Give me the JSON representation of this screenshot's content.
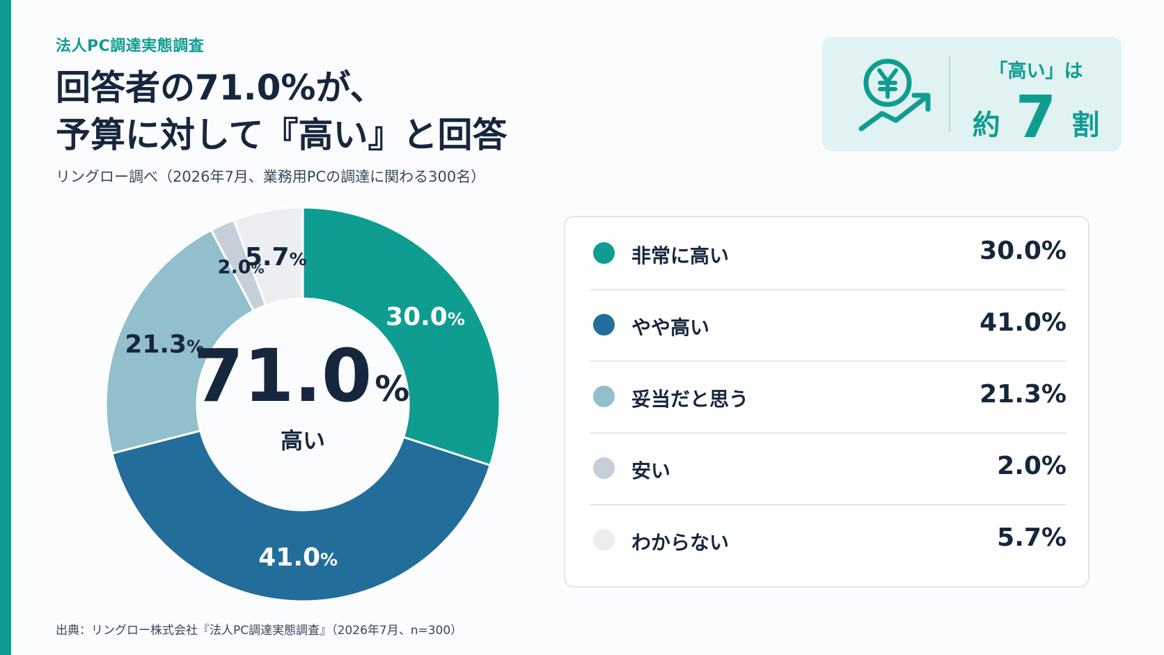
{
  "header": {
    "kicker": "法人PC調達実態調査",
    "headline_line1": "回答者の71.0%が、",
    "headline_line2": "予算に対して『高い』と回答",
    "subtitle": "リングロー調べ（2026年7月、業務用PCの調達に関わる300名）"
  },
  "callout": {
    "icon": "yen-coin-trend-up-icon",
    "line1": "「高い」は",
    "prefix": "約",
    "number": "7",
    "suffix": "割"
  },
  "chart_data": {
    "type": "pie",
    "donut": true,
    "unit": "%",
    "center_value": "71.0",
    "center_unit": "%",
    "center_label": "高い",
    "slices": [
      {
        "label": "非常に高い",
        "value": 30.0,
        "display": "30.0%",
        "value_text": "30.0",
        "color": "#0f9c91",
        "label_color": "#ffffff"
      },
      {
        "label": "やや高い",
        "value": 41.0,
        "display": "41.0%",
        "value_text": "41.0",
        "color": "#236d9b",
        "label_color": "#ffffff"
      },
      {
        "label": "妥当だと思う",
        "value": 21.3,
        "display": "21.3%",
        "value_text": "21.3",
        "color": "#92bfcc",
        "label_color": "#16263d"
      },
      {
        "label": "安い",
        "value": 2.0,
        "display": "2.0%",
        "value_text": "2.0",
        "color": "#c6cfd9",
        "label_color": "#16263d"
      },
      {
        "label": "わからない",
        "value": 5.7,
        "display": "5.7%",
        "value_text": "5.7",
        "color": "#eceef1",
        "label_color": "#16263d"
      }
    ]
  },
  "source": "出典：リングロー株式会社『法人PC調達実態調査』（2026年7月、n=300）"
}
